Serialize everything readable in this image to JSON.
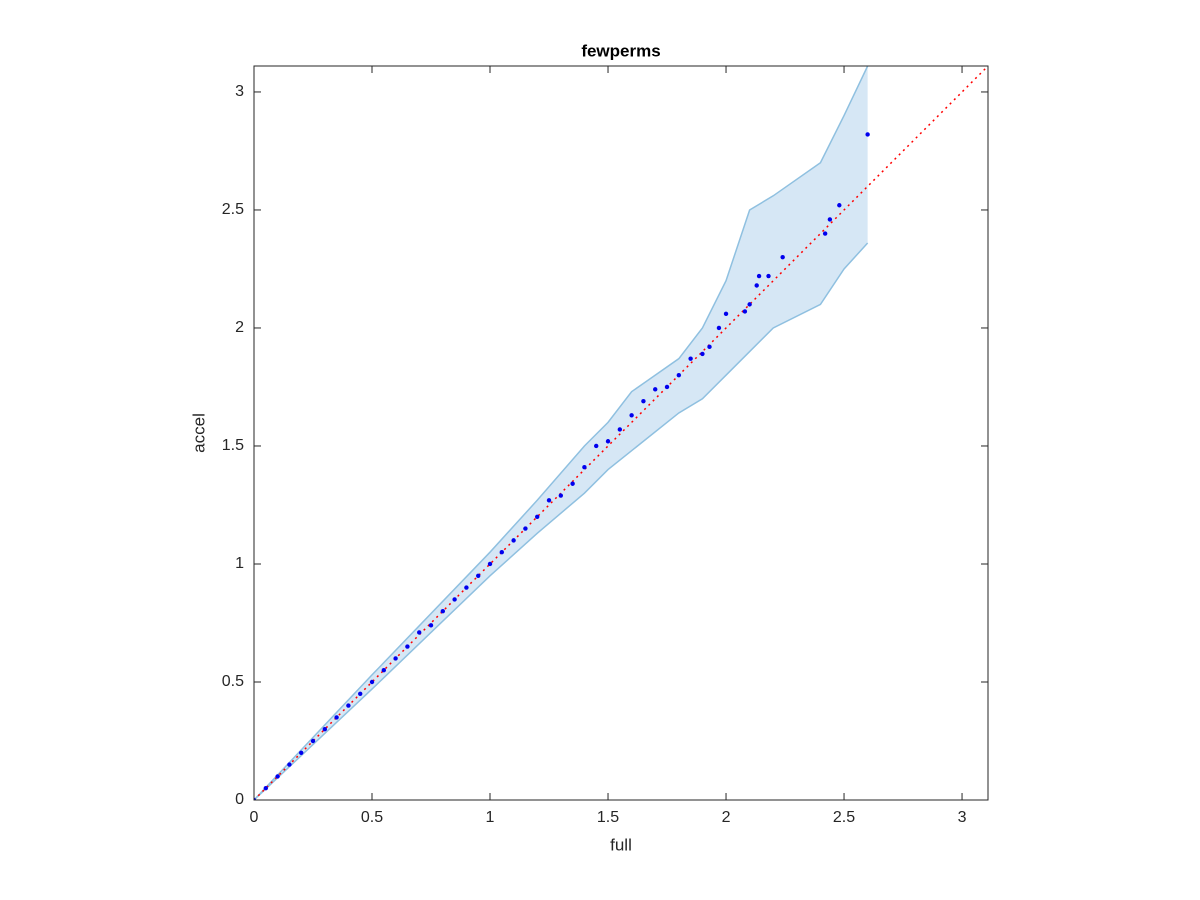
{
  "chart_data": {
    "type": "scatter",
    "title": "fewperms",
    "x_label": "full",
    "y_label": "accel",
    "xlim": [
      0,
      3.11
    ],
    "ylim": [
      0,
      3.11
    ],
    "xticks": [
      0,
      0.5,
      1,
      1.5,
      2,
      2.5,
      3
    ],
    "yticks": [
      0,
      0.5,
      1,
      1.5,
      2,
      2.5,
      3
    ],
    "reference_line_color": "#ff0000",
    "series": [
      {
        "color": "#0000ee",
        "x": [
          0,
          0.05,
          0.1,
          0.15,
          0.2,
          0.25,
          0.3,
          0.35,
          0.4,
          0.45,
          0.5,
          0.55,
          0.6,
          0.65,
          0.7,
          0.75,
          0.8,
          0.85,
          0.9,
          0.95,
          1.0,
          1.05,
          1.1,
          1.15,
          1.2,
          1.25,
          1.3,
          1.35,
          1.4,
          1.45,
          1.5,
          1.55,
          1.6,
          1.65,
          1.7,
          1.75,
          1.8,
          1.85,
          1.9,
          1.93,
          1.97,
          2.0,
          2.08,
          2.1,
          2.13,
          2.14,
          2.18,
          2.24,
          2.42,
          2.44,
          2.48,
          2.6
        ],
        "values": [
          0,
          0.05,
          0.1,
          0.15,
          0.2,
          0.25,
          0.3,
          0.35,
          0.4,
          0.45,
          0.5,
          0.55,
          0.6,
          0.65,
          0.71,
          0.74,
          0.8,
          0.85,
          0.9,
          0.95,
          1.0,
          1.05,
          1.1,
          1.15,
          1.2,
          1.27,
          1.29,
          1.34,
          1.41,
          1.5,
          1.52,
          1.57,
          1.63,
          1.69,
          1.74,
          1.75,
          1.8,
          1.87,
          1.89,
          1.92,
          2.0,
          2.06,
          2.07,
          2.1,
          2.18,
          2.22,
          2.22,
          2.3,
          2.4,
          2.46,
          2.52,
          2.82
        ]
      }
    ],
    "band": {
      "color": "#d6e7f5",
      "edge_color": "#8fc0e0",
      "x": [
        0,
        0.5,
        1.0,
        1.2,
        1.4,
        1.5,
        1.6,
        1.8,
        1.9,
        2.0,
        2.1,
        2.2,
        2.4,
        2.5,
        2.6
      ],
      "upper": [
        0,
        0.53,
        1.05,
        1.27,
        1.5,
        1.6,
        1.73,
        1.87,
        2.0,
        2.2,
        2.5,
        2.56,
        2.7,
        2.9,
        3.11
      ],
      "lower": [
        0,
        0.47,
        0.95,
        1.13,
        1.3,
        1.4,
        1.48,
        1.64,
        1.7,
        1.8,
        1.9,
        2.0,
        2.1,
        2.25,
        2.36
      ]
    }
  }
}
